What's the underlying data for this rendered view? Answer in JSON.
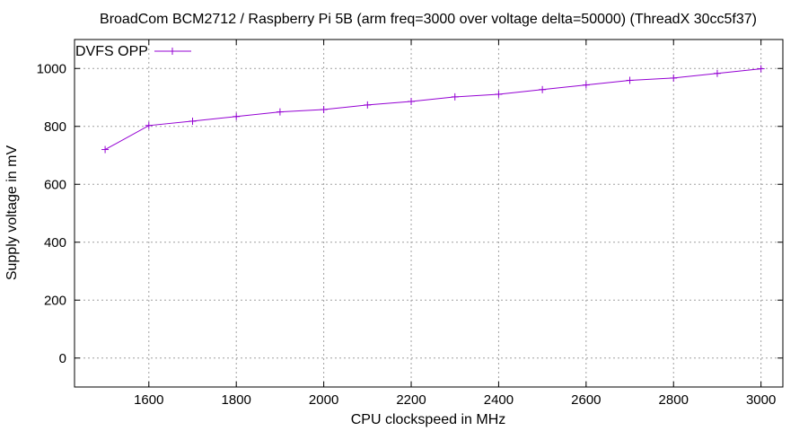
{
  "colors": {
    "series": "#9400d3",
    "grid": "#a0a0a0",
    "frame": "#000000"
  },
  "chart_data": {
    "type": "line",
    "title": "BroadCom BCM2712 / Raspberry Pi 5B (arm freq=3000 over voltage delta=50000) (ThreadX 30cc5f37)",
    "xlabel": "CPU clockspeed in MHz",
    "ylabel": "Supply voltage in mV",
    "xlim": [
      1430,
      3050
    ],
    "ylim": [
      -100,
      1100
    ],
    "xticks": [
      1600,
      1800,
      2000,
      2200,
      2400,
      2600,
      2800,
      3000
    ],
    "yticks": [
      0,
      200,
      400,
      600,
      800,
      1000
    ],
    "grid": true,
    "legend_position": "top-left",
    "marker": "plus",
    "series": [
      {
        "name": "DVFS OPP",
        "x": [
          1500,
          1600,
          1700,
          1800,
          1900,
          2000,
          2100,
          2200,
          2300,
          2400,
          2500,
          2600,
          2700,
          2800,
          2900,
          3000
        ],
        "y": [
          720,
          803,
          818,
          834,
          850,
          858,
          874,
          886,
          902,
          911,
          927,
          943,
          959,
          967,
          983,
          999
        ]
      }
    ]
  }
}
